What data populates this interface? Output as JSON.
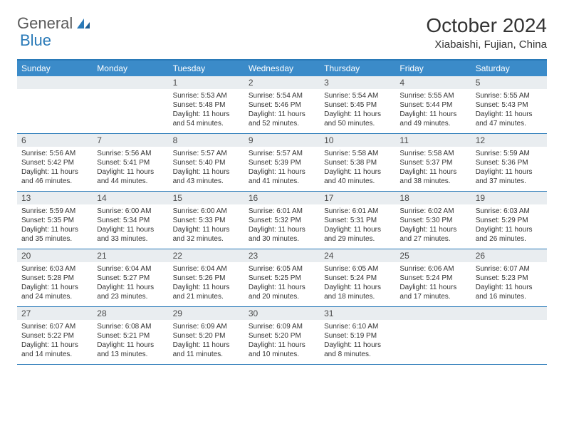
{
  "logo": {
    "word1": "General",
    "word2": "Blue"
  },
  "title": "October 2024",
  "location": "Xiabaishi, Fujian, China",
  "colors": {
    "header_bar": "#3b8bc9",
    "border": "#2a7ab8",
    "daynum_bg": "#e9edf0",
    "text": "#333333",
    "logo_gray": "#5a5a5a",
    "logo_blue": "#2a7ab8"
  },
  "weekdays": [
    "Sunday",
    "Monday",
    "Tuesday",
    "Wednesday",
    "Thursday",
    "Friday",
    "Saturday"
  ],
  "weeks": [
    [
      null,
      null,
      {
        "n": "1",
        "sr": "Sunrise: 5:53 AM",
        "ss": "Sunset: 5:48 PM",
        "d1": "Daylight: 11 hours",
        "d2": "and 54 minutes."
      },
      {
        "n": "2",
        "sr": "Sunrise: 5:54 AM",
        "ss": "Sunset: 5:46 PM",
        "d1": "Daylight: 11 hours",
        "d2": "and 52 minutes."
      },
      {
        "n": "3",
        "sr": "Sunrise: 5:54 AM",
        "ss": "Sunset: 5:45 PM",
        "d1": "Daylight: 11 hours",
        "d2": "and 50 minutes."
      },
      {
        "n": "4",
        "sr": "Sunrise: 5:55 AM",
        "ss": "Sunset: 5:44 PM",
        "d1": "Daylight: 11 hours",
        "d2": "and 49 minutes."
      },
      {
        "n": "5",
        "sr": "Sunrise: 5:55 AM",
        "ss": "Sunset: 5:43 PM",
        "d1": "Daylight: 11 hours",
        "d2": "and 47 minutes."
      }
    ],
    [
      {
        "n": "6",
        "sr": "Sunrise: 5:56 AM",
        "ss": "Sunset: 5:42 PM",
        "d1": "Daylight: 11 hours",
        "d2": "and 46 minutes."
      },
      {
        "n": "7",
        "sr": "Sunrise: 5:56 AM",
        "ss": "Sunset: 5:41 PM",
        "d1": "Daylight: 11 hours",
        "d2": "and 44 minutes."
      },
      {
        "n": "8",
        "sr": "Sunrise: 5:57 AM",
        "ss": "Sunset: 5:40 PM",
        "d1": "Daylight: 11 hours",
        "d2": "and 43 minutes."
      },
      {
        "n": "9",
        "sr": "Sunrise: 5:57 AM",
        "ss": "Sunset: 5:39 PM",
        "d1": "Daylight: 11 hours",
        "d2": "and 41 minutes."
      },
      {
        "n": "10",
        "sr": "Sunrise: 5:58 AM",
        "ss": "Sunset: 5:38 PM",
        "d1": "Daylight: 11 hours",
        "d2": "and 40 minutes."
      },
      {
        "n": "11",
        "sr": "Sunrise: 5:58 AM",
        "ss": "Sunset: 5:37 PM",
        "d1": "Daylight: 11 hours",
        "d2": "and 38 minutes."
      },
      {
        "n": "12",
        "sr": "Sunrise: 5:59 AM",
        "ss": "Sunset: 5:36 PM",
        "d1": "Daylight: 11 hours",
        "d2": "and 37 minutes."
      }
    ],
    [
      {
        "n": "13",
        "sr": "Sunrise: 5:59 AM",
        "ss": "Sunset: 5:35 PM",
        "d1": "Daylight: 11 hours",
        "d2": "and 35 minutes."
      },
      {
        "n": "14",
        "sr": "Sunrise: 6:00 AM",
        "ss": "Sunset: 5:34 PM",
        "d1": "Daylight: 11 hours",
        "d2": "and 33 minutes."
      },
      {
        "n": "15",
        "sr": "Sunrise: 6:00 AM",
        "ss": "Sunset: 5:33 PM",
        "d1": "Daylight: 11 hours",
        "d2": "and 32 minutes."
      },
      {
        "n": "16",
        "sr": "Sunrise: 6:01 AM",
        "ss": "Sunset: 5:32 PM",
        "d1": "Daylight: 11 hours",
        "d2": "and 30 minutes."
      },
      {
        "n": "17",
        "sr": "Sunrise: 6:01 AM",
        "ss": "Sunset: 5:31 PM",
        "d1": "Daylight: 11 hours",
        "d2": "and 29 minutes."
      },
      {
        "n": "18",
        "sr": "Sunrise: 6:02 AM",
        "ss": "Sunset: 5:30 PM",
        "d1": "Daylight: 11 hours",
        "d2": "and 27 minutes."
      },
      {
        "n": "19",
        "sr": "Sunrise: 6:03 AM",
        "ss": "Sunset: 5:29 PM",
        "d1": "Daylight: 11 hours",
        "d2": "and 26 minutes."
      }
    ],
    [
      {
        "n": "20",
        "sr": "Sunrise: 6:03 AM",
        "ss": "Sunset: 5:28 PM",
        "d1": "Daylight: 11 hours",
        "d2": "and 24 minutes."
      },
      {
        "n": "21",
        "sr": "Sunrise: 6:04 AM",
        "ss": "Sunset: 5:27 PM",
        "d1": "Daylight: 11 hours",
        "d2": "and 23 minutes."
      },
      {
        "n": "22",
        "sr": "Sunrise: 6:04 AM",
        "ss": "Sunset: 5:26 PM",
        "d1": "Daylight: 11 hours",
        "d2": "and 21 minutes."
      },
      {
        "n": "23",
        "sr": "Sunrise: 6:05 AM",
        "ss": "Sunset: 5:25 PM",
        "d1": "Daylight: 11 hours",
        "d2": "and 20 minutes."
      },
      {
        "n": "24",
        "sr": "Sunrise: 6:05 AM",
        "ss": "Sunset: 5:24 PM",
        "d1": "Daylight: 11 hours",
        "d2": "and 18 minutes."
      },
      {
        "n": "25",
        "sr": "Sunrise: 6:06 AM",
        "ss": "Sunset: 5:24 PM",
        "d1": "Daylight: 11 hours",
        "d2": "and 17 minutes."
      },
      {
        "n": "26",
        "sr": "Sunrise: 6:07 AM",
        "ss": "Sunset: 5:23 PM",
        "d1": "Daylight: 11 hours",
        "d2": "and 16 minutes."
      }
    ],
    [
      {
        "n": "27",
        "sr": "Sunrise: 6:07 AM",
        "ss": "Sunset: 5:22 PM",
        "d1": "Daylight: 11 hours",
        "d2": "and 14 minutes."
      },
      {
        "n": "28",
        "sr": "Sunrise: 6:08 AM",
        "ss": "Sunset: 5:21 PM",
        "d1": "Daylight: 11 hours",
        "d2": "and 13 minutes."
      },
      {
        "n": "29",
        "sr": "Sunrise: 6:09 AM",
        "ss": "Sunset: 5:20 PM",
        "d1": "Daylight: 11 hours",
        "d2": "and 11 minutes."
      },
      {
        "n": "30",
        "sr": "Sunrise: 6:09 AM",
        "ss": "Sunset: 5:20 PM",
        "d1": "Daylight: 11 hours",
        "d2": "and 10 minutes."
      },
      {
        "n": "31",
        "sr": "Sunrise: 6:10 AM",
        "ss": "Sunset: 5:19 PM",
        "d1": "Daylight: 11 hours",
        "d2": "and 8 minutes."
      },
      null,
      null
    ]
  ]
}
